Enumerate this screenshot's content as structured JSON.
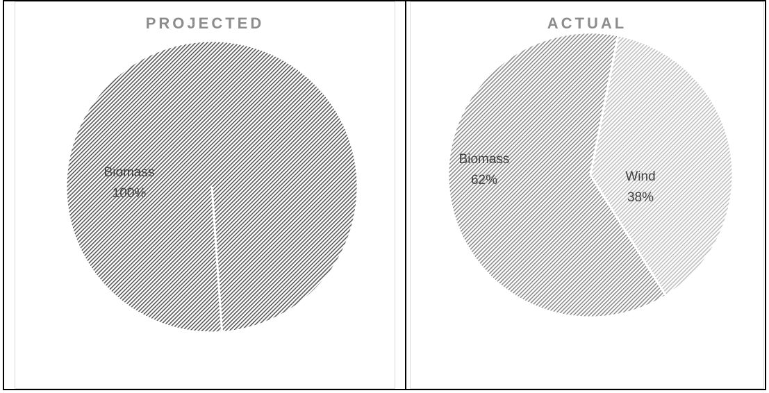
{
  "chart_data": [
    {
      "type": "pie",
      "title": "PROJECTED",
      "categories": [
        "Biomass"
      ],
      "values": [
        100
      ],
      "data_labels": [
        [
          "Biomass",
          "100%"
        ]
      ],
      "colors": [
        "#595959"
      ]
    },
    {
      "type": "pie",
      "title": "ACTUAL",
      "categories": [
        "Biomass",
        "Wind"
      ],
      "values": [
        62,
        38
      ],
      "data_labels": [
        [
          "Biomass",
          "62%"
        ],
        [
          "Wind",
          "38%"
        ]
      ],
      "colors": [
        "#8c8c8c",
        "#bfbfbf"
      ]
    }
  ]
}
